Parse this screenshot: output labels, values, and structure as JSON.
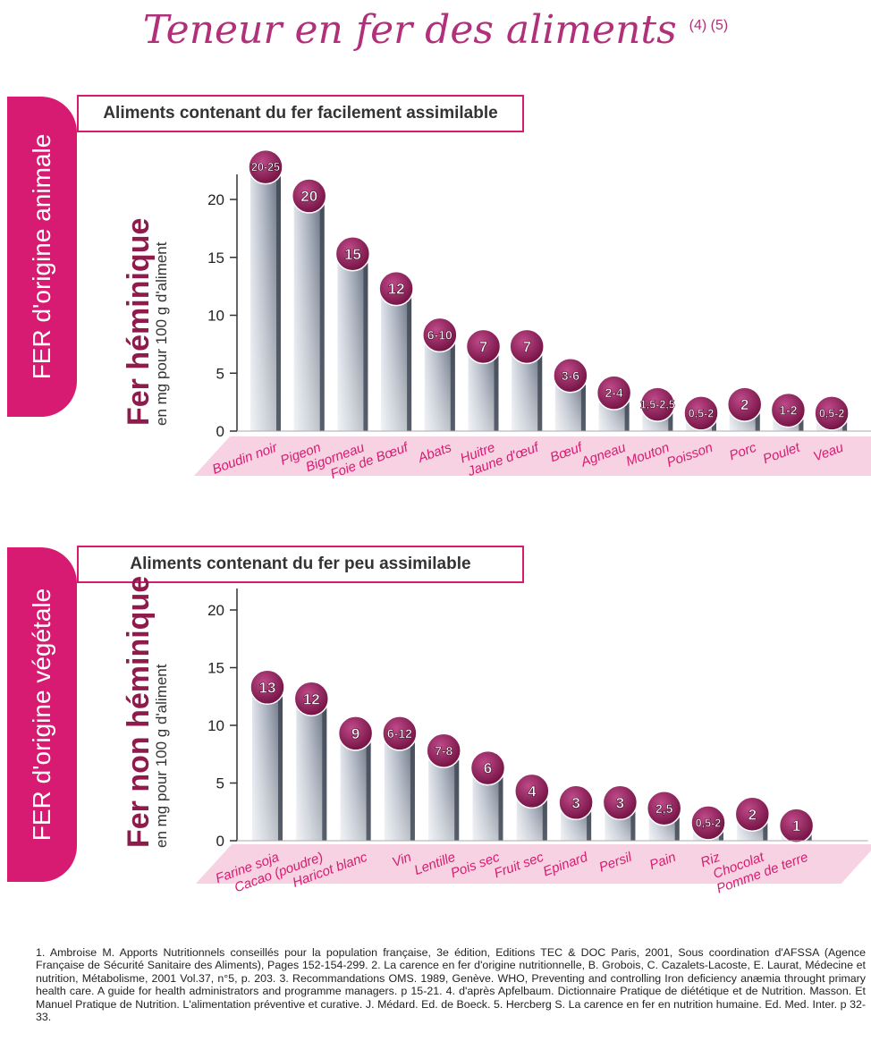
{
  "page": {
    "title": "Teneur en fer des aliments",
    "title_refs": "(4) (5)"
  },
  "section_animal": {
    "side_label": "FER d'origine animale",
    "box_title": "Aliments contenant du fer facilement assimilable",
    "y_title": "Fer héminique",
    "y_subtitle": "en mg pour 100 g d'aliment"
  },
  "section_vegetal": {
    "side_label": "FER d'origine végétale",
    "box_title": "Aliments contenant du fer peu assimilable",
    "y_title": "Fer non héminique",
    "y_subtitle": "en mg pour 100 g d'aliment"
  },
  "colors": {
    "accent": "#d81b72",
    "title": "#b0307a",
    "badge": "#8b1a52",
    "label_band": "#f4c3d8"
  },
  "chart_data": [
    {
      "type": "bar",
      "ylabel": "Fer héminique",
      "ylim": [
        0,
        22.5
      ],
      "yticks": [
        0,
        5,
        10,
        15,
        20
      ],
      "categories": [
        "Boudin noir",
        "Pigeon",
        "Bigorneau",
        "Foie de Bœuf",
        "Abats",
        "Huitre",
        "Jaune d'œuf",
        "Bœuf",
        "Agneau",
        "Mouton",
        "Poisson",
        "Porc",
        "Poulet",
        "Veau"
      ],
      "values": [
        22.5,
        20,
        15,
        12,
        8,
        7,
        7,
        4.5,
        3,
        2,
        1.25,
        2,
        1.5,
        1.25
      ],
      "labels": [
        "20-25",
        "20",
        "15",
        "12",
        "6-10",
        "7",
        "7",
        "3-6",
        "2-4",
        "1,5-2,5",
        "0,5-2",
        "2",
        "1-2",
        "0,5-2"
      ]
    },
    {
      "type": "bar",
      "ylabel": "Fer non héminique",
      "ylim": [
        0,
        22
      ],
      "yticks": [
        0,
        5,
        10,
        15,
        20
      ],
      "categories": [
        "Farine soja",
        "Cacao (poudre)",
        "Haricot blanc",
        "Vin",
        "Lentille",
        "Pois sec",
        "Fruit sec",
        "Epinard",
        "Persil",
        "Pain",
        "Riz",
        "Chocolat",
        "Pomme de terre"
      ],
      "values": [
        13,
        12,
        9,
        9,
        7.5,
        6,
        4,
        3,
        3,
        2.5,
        1.25,
        2,
        1
      ],
      "labels": [
        "13",
        "12",
        "9",
        "6-12",
        "7-8",
        "6",
        "4",
        "3",
        "3",
        "2,5",
        "0,5-2",
        "2",
        "1"
      ]
    }
  ],
  "references": {
    "text": "1. Ambroise M. Apports Nutritionnels conseillés pour la population française, 3e édition, Editions TEC & DOC Paris, 2001, Sous coordination d'AFSSA (Agence Française de Sécurité Sanitaire des Aliments), Pages 152-154-299. 2. La carence en fer d'origine nutritionnelle, B. Grobois, C. Cazalets-Lacoste, E. Laurat, Médecine et nutrition, Métabolisme, 2001 Vol.37, n°5, p. 203. 3. Recommandations OMS. 1989, Genève. WHO, Preventing and controlling Iron deficiency anæmia throught primary health care. A guide for health administrators and programme managers. p 15-21. 4. d'après Apfelbaum. Dictionnaire Pratique de diététique et de Nutrition. Masson. Et Manuel Pratique de Nutrition. L'alimentation préventive et curative. J. Médard. Ed. de Boeck. 5. Hercberg S. La carence en fer en nutrition humaine. Ed. Med. Inter. p 32-33."
  }
}
